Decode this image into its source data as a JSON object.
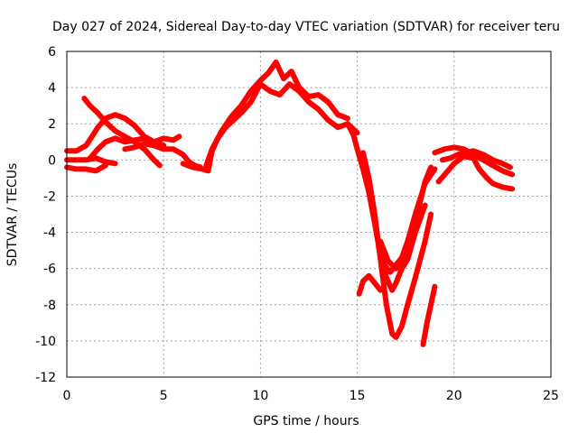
{
  "chart_data": {
    "type": "line",
    "title": "Day 027 of 2024, Sidereal Day-to-day VTEC variation (SDTVAR) for receiver teru",
    "xlabel": "GPS time / hours",
    "ylabel": "SDTVAR / TECUs",
    "xlim": [
      0,
      25
    ],
    "ylim": [
      -12,
      6
    ],
    "xticks": [
      0,
      5,
      10,
      15,
      20,
      25
    ],
    "yticks": [
      -12,
      -10,
      -8,
      -6,
      -4,
      -2,
      0,
      2,
      4,
      6
    ],
    "grid": true,
    "colors": {
      "series": "#ff0000",
      "grid": "#a0a0a0",
      "frame": "#000000"
    },
    "series": [
      {
        "x": [
          0.0,
          0.5,
          1.0,
          1.5,
          2.0
        ],
        "y": [
          -0.4,
          -0.5,
          -0.5,
          -0.6,
          -0.3
        ]
      },
      {
        "x": [
          0.0,
          0.5,
          1.0,
          1.5,
          2.0,
          2.5
        ],
        "y": [
          0.0,
          0.0,
          0.0,
          0.1,
          -0.1,
          -0.2
        ]
      },
      {
        "x": [
          0.0,
          0.5,
          1.0,
          1.3,
          1.6,
          2.0,
          2.5,
          3.0,
          3.5,
          4.0,
          4.5,
          5.0
        ],
        "y": [
          0.5,
          0.5,
          0.8,
          1.3,
          1.8,
          2.3,
          2.5,
          2.3,
          1.9,
          1.3,
          1.0,
          0.8
        ]
      },
      {
        "x": [
          0.9,
          1.2,
          1.6,
          2.0,
          2.5,
          3.0,
          3.5,
          4.0,
          4.5,
          4.8
        ],
        "y": [
          3.4,
          3.0,
          2.6,
          2.1,
          1.6,
          1.3,
          1.0,
          0.6,
          0.0,
          -0.3
        ]
      },
      {
        "x": [
          1.2,
          1.6,
          2.0,
          2.5,
          3.0,
          3.5,
          4.0,
          4.5,
          5.0,
          5.5,
          5.8
        ],
        "y": [
          0.1,
          0.6,
          1.0,
          1.2,
          1.0,
          1.1,
          1.2,
          1.0,
          1.2,
          1.1,
          1.3
        ]
      },
      {
        "x": [
          3.0,
          3.5,
          4.0,
          4.5,
          5.0,
          5.5,
          6.0,
          6.3,
          6.6,
          6.9
        ],
        "y": [
          0.6,
          0.7,
          0.9,
          0.8,
          0.6,
          0.6,
          0.3,
          -0.1,
          -0.3,
          -0.4
        ]
      },
      {
        "x": [
          6.0,
          6.5,
          7.0,
          7.3,
          7.5,
          7.8,
          8.2,
          8.6,
          9.0,
          9.5,
          10.0,
          10.5,
          11.0,
          11.5,
          12.0,
          12.5,
          13.0,
          13.5,
          14.0,
          14.5,
          15.0
        ],
        "y": [
          -0.2,
          -0.4,
          -0.5,
          -0.6,
          0.5,
          1.2,
          1.8,
          2.2,
          2.6,
          3.2,
          4.2,
          3.8,
          3.6,
          4.2,
          3.8,
          3.2,
          2.8,
          2.2,
          1.8,
          2.0,
          1.5
        ]
      },
      {
        "x": [
          7.2,
          7.5,
          8.0,
          8.5,
          9.0,
          9.5,
          10.0,
          10.4,
          10.8,
          11.2,
          11.6,
          12.0,
          12.5,
          13.0,
          13.5,
          14.0,
          14.5
        ],
        "y": [
          -0.3,
          0.6,
          1.6,
          2.4,
          3.0,
          3.8,
          4.4,
          4.8,
          5.4,
          4.5,
          4.9,
          4.0,
          3.5,
          3.6,
          3.2,
          2.5,
          2.3
        ]
      },
      {
        "x": [
          14.5,
          14.8,
          15.0,
          15.3,
          15.6,
          15.9,
          16.2,
          16.5,
          16.8,
          17.0,
          17.3,
          17.6,
          18.0,
          18.5
        ],
        "y": [
          2.0,
          1.4,
          0.6,
          -0.5,
          -1.8,
          -3.5,
          -5.3,
          -6.5,
          -7.2,
          -6.8,
          -6.0,
          -5.5,
          -4.0,
          -2.5
        ]
      },
      {
        "x": [
          15.3,
          15.6,
          15.9,
          16.2,
          16.5,
          16.8,
          17.0,
          17.3,
          17.6,
          18.0,
          18.5,
          18.8
        ],
        "y": [
          0.4,
          -1.0,
          -3.0,
          -5.5,
          -8.0,
          -9.6,
          -9.8,
          -9.2,
          -8.0,
          -6.5,
          -4.5,
          -3.0
        ]
      },
      {
        "x": [
          16.1,
          16.4,
          16.7,
          17.0,
          17.3,
          17.6,
          18.0,
          18.5,
          19.0
        ],
        "y": [
          -4.8,
          -5.8,
          -6.2,
          -5.8,
          -5.4,
          -4.5,
          -3.0,
          -1.3,
          -0.5
        ]
      },
      {
        "x": [
          15.1,
          15.3,
          15.6,
          15.9,
          16.2
        ],
        "y": [
          -7.4,
          -6.7,
          -6.4,
          -6.8,
          -7.2
        ]
      },
      {
        "x": [
          16.2,
          16.6,
          17.0,
          17.4,
          18.0,
          18.5,
          18.8
        ],
        "y": [
          -4.5,
          -5.6,
          -6.0,
          -5.4,
          -3.4,
          -1.2,
          -0.4
        ]
      },
      {
        "x": [
          18.4,
          18.6,
          18.8,
          19.0
        ],
        "y": [
          -10.2,
          -9.0,
          -8.0,
          -7.0
        ]
      },
      {
        "x": [
          19.0,
          19.5,
          20.0,
          20.5,
          21.0,
          21.5,
          22.0,
          22.5,
          23.0
        ],
        "y": [
          0.4,
          0.6,
          0.7,
          0.6,
          0.3,
          0.0,
          -0.3,
          -0.6,
          -0.8
        ]
      },
      {
        "x": [
          19.2,
          19.6,
          20.0,
          20.5,
          21.0,
          21.3,
          21.7,
          22.0,
          22.5,
          23.0
        ],
        "y": [
          -1.2,
          -0.7,
          -0.2,
          0.2,
          0.1,
          -0.5,
          -1.0,
          -1.3,
          -1.5,
          -1.6
        ]
      },
      {
        "x": [
          19.4,
          19.8,
          20.2,
          20.6,
          21.0,
          21.5,
          22.0,
          22.5,
          22.9
        ],
        "y": [
          0.0,
          0.1,
          0.3,
          0.4,
          0.5,
          0.3,
          0.0,
          -0.2,
          -0.4
        ]
      }
    ]
  }
}
